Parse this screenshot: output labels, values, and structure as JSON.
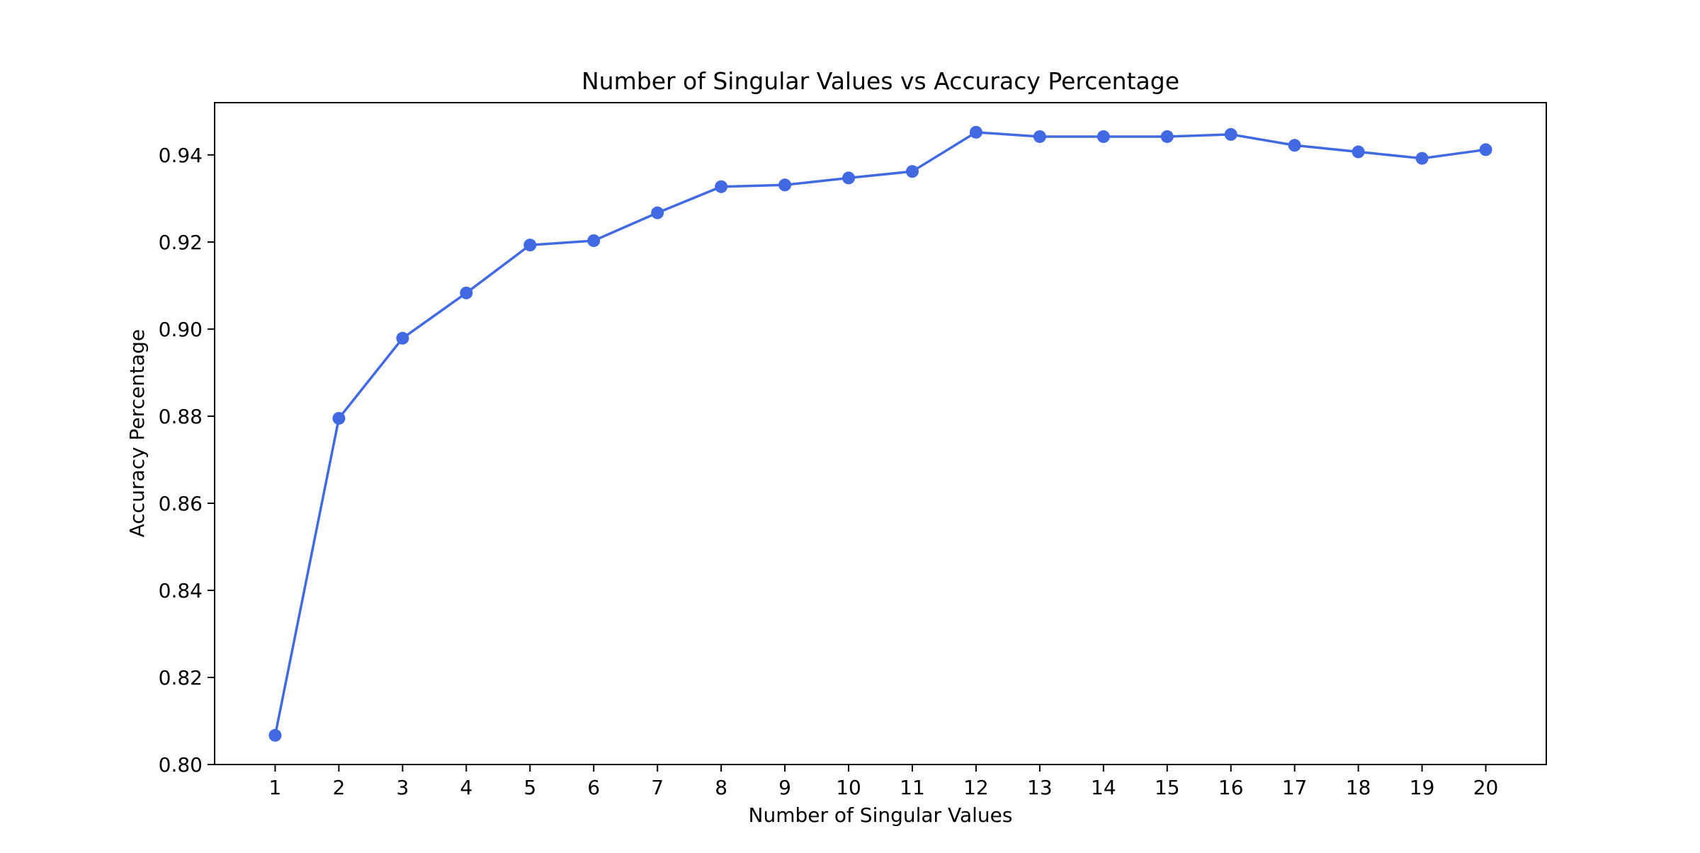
{
  "chart_data": {
    "type": "line",
    "title": "Number of Singular Values vs Accuracy Percentage",
    "xlabel": "Number of Singular Values",
    "ylabel": "Accuracy Percentage",
    "x": [
      1,
      2,
      3,
      4,
      5,
      6,
      7,
      8,
      9,
      10,
      11,
      12,
      13,
      14,
      15,
      16,
      17,
      18,
      19,
      20
    ],
    "x_tick_labels": [
      "1",
      "2",
      "3",
      "4",
      "5",
      "6",
      "7",
      "8",
      "9",
      "10",
      "11",
      "12",
      "13",
      "14",
      "15",
      "16",
      "17",
      "18",
      "19",
      "20"
    ],
    "series": [
      {
        "values": [
          0.8067,
          0.8795,
          0.8979,
          0.9083,
          0.9193,
          0.9203,
          0.9267,
          0.9327,
          0.9331,
          0.9347,
          0.9362,
          0.9452,
          0.9442,
          0.9442,
          0.9442,
          0.9447,
          0.9422,
          0.9407,
          0.9392,
          0.9412
        ],
        "color": "#4169e1",
        "marker": "circle"
      }
    ],
    "xlim": [
      0.05,
      20.95
    ],
    "ylim": [
      0.8,
      0.952
    ],
    "y_ticks": [
      0.8,
      0.82,
      0.84,
      0.86,
      0.88,
      0.9,
      0.92,
      0.94
    ],
    "y_tick_labels": [
      "0.80",
      "0.82",
      "0.84",
      "0.86",
      "0.88",
      "0.90",
      "0.92",
      "0.94"
    ],
    "grid": false,
    "legend": false
  }
}
